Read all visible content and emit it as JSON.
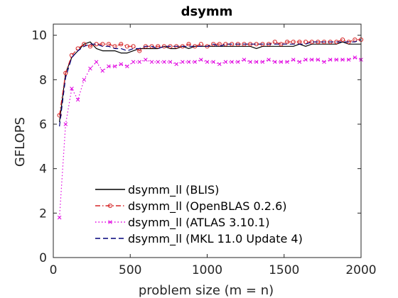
{
  "chart_data": {
    "type": "line",
    "title": "dsymm",
    "xlabel": "problem size (m = n)",
    "ylabel": "GFLOPS",
    "xlim": [
      0,
      2000
    ],
    "ylim": [
      0,
      10.5
    ],
    "xticks": [
      0,
      500,
      1000,
      1500,
      2000
    ],
    "yticks": [
      0,
      2,
      4,
      6,
      8,
      10
    ],
    "grid": false,
    "legend_position": "bottom-center",
    "series": [
      {
        "name": "dsymm_ll (BLIS)",
        "color": "#000000",
        "line_style": "solid",
        "marker": "none",
        "x": [
          40,
          80,
          120,
          160,
          200,
          240,
          280,
          320,
          360,
          400,
          440,
          480,
          520,
          560,
          600,
          640,
          680,
          720,
          760,
          800,
          840,
          880,
          920,
          960,
          1000,
          1040,
          1080,
          1120,
          1160,
          1200,
          1240,
          1280,
          1320,
          1360,
          1400,
          1440,
          1480,
          1520,
          1560,
          1600,
          1640,
          1680,
          1720,
          1760,
          1800,
          1840,
          1880,
          1920,
          1960,
          2000
        ],
        "values": [
          6.1,
          8.3,
          9.0,
          9.3,
          9.6,
          9.7,
          9.4,
          9.3,
          9.3,
          9.3,
          9.2,
          9.2,
          9.3,
          9.4,
          9.4,
          9.4,
          9.4,
          9.5,
          9.4,
          9.4,
          9.5,
          9.4,
          9.5,
          9.5,
          9.5,
          9.5,
          9.5,
          9.5,
          9.5,
          9.5,
          9.5,
          9.5,
          9.4,
          9.5,
          9.5,
          9.5,
          9.5,
          9.5,
          9.5,
          9.6,
          9.5,
          9.6,
          9.6,
          9.6,
          9.6,
          9.6,
          9.7,
          9.6,
          9.6,
          9.6
        ]
      },
      {
        "name": "dsymm_ll (OpenBLAS 0.2.6)",
        "color": "#d62728",
        "line_style": "dashdot",
        "marker": "circle",
        "x": [
          40,
          80,
          120,
          160,
          200,
          240,
          280,
          320,
          360,
          400,
          440,
          480,
          520,
          560,
          600,
          640,
          680,
          720,
          760,
          800,
          840,
          880,
          920,
          960,
          1000,
          1040,
          1080,
          1120,
          1160,
          1200,
          1240,
          1280,
          1320,
          1360,
          1400,
          1440,
          1480,
          1520,
          1560,
          1600,
          1640,
          1680,
          1720,
          1760,
          1800,
          1840,
          1880,
          1920,
          1960,
          2000
        ],
        "values": [
          6.4,
          8.3,
          9.1,
          9.4,
          9.6,
          9.5,
          9.6,
          9.6,
          9.6,
          9.5,
          9.6,
          9.5,
          9.5,
          9.3,
          9.5,
          9.5,
          9.5,
          9.5,
          9.5,
          9.5,
          9.5,
          9.6,
          9.5,
          9.6,
          9.5,
          9.6,
          9.6,
          9.6,
          9.6,
          9.6,
          9.6,
          9.6,
          9.6,
          9.6,
          9.6,
          9.7,
          9.6,
          9.7,
          9.7,
          9.7,
          9.7,
          9.7,
          9.7,
          9.7,
          9.7,
          9.7,
          9.8,
          9.7,
          9.8,
          9.8
        ]
      },
      {
        "name": "dsymm_ll (ATLAS 3.10.1)",
        "color": "#e000e0",
        "line_style": "dotted",
        "marker": "x",
        "x": [
          40,
          80,
          120,
          160,
          200,
          240,
          280,
          320,
          360,
          400,
          440,
          480,
          520,
          560,
          600,
          640,
          680,
          720,
          760,
          800,
          840,
          880,
          920,
          960,
          1000,
          1040,
          1080,
          1120,
          1160,
          1200,
          1240,
          1280,
          1320,
          1360,
          1400,
          1440,
          1480,
          1520,
          1560,
          1600,
          1640,
          1680,
          1720,
          1760,
          1800,
          1840,
          1880,
          1920,
          1960,
          2000
        ],
        "values": [
          1.8,
          6.0,
          7.6,
          7.1,
          8.0,
          8.5,
          8.8,
          8.4,
          8.6,
          8.6,
          8.7,
          8.6,
          8.8,
          8.8,
          8.9,
          8.8,
          8.8,
          8.8,
          8.8,
          8.7,
          8.8,
          8.8,
          8.8,
          8.9,
          8.8,
          8.8,
          8.7,
          8.8,
          8.8,
          8.8,
          8.9,
          8.8,
          8.8,
          8.8,
          8.9,
          8.8,
          8.8,
          8.8,
          8.9,
          8.8,
          8.9,
          8.9,
          8.9,
          8.8,
          8.9,
          8.9,
          8.9,
          8.9,
          9.0,
          8.9
        ]
      },
      {
        "name": "dsymm_ll (MKL 11.0 Update 4)",
        "color": "#00007a",
        "line_style": "dashed",
        "marker": "none",
        "x": [
          40,
          80,
          120,
          160,
          200,
          240,
          280,
          320,
          360,
          400,
          440,
          480,
          520,
          560,
          600,
          640,
          680,
          720,
          760,
          800,
          840,
          880,
          920,
          960,
          1000,
          1040,
          1080,
          1120,
          1160,
          1200,
          1240,
          1280,
          1320,
          1360,
          1400,
          1440,
          1480,
          1520,
          1560,
          1600,
          1640,
          1680,
          1720,
          1760,
          1800,
          1840,
          1880,
          1920,
          1960,
          2000
        ],
        "values": [
          5.9,
          8.1,
          9.0,
          9.3,
          9.5,
          9.6,
          9.6,
          9.5,
          9.5,
          9.4,
          9.4,
          9.3,
          9.4,
          9.4,
          9.5,
          9.5,
          9.4,
          9.5,
          9.5,
          9.5,
          9.5,
          9.5,
          9.5,
          9.5,
          9.5,
          9.6,
          9.5,
          9.6,
          9.6,
          9.6,
          9.6,
          9.6,
          9.6,
          9.6,
          9.6,
          9.6,
          9.6,
          9.6,
          9.6,
          9.6,
          9.6,
          9.7,
          9.7,
          9.7,
          9.7,
          9.7,
          9.7,
          9.7,
          9.7,
          9.8
        ]
      }
    ]
  }
}
